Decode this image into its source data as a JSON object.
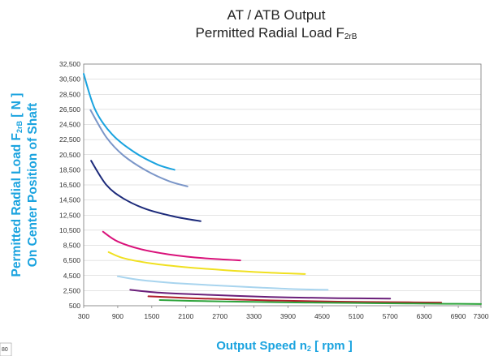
{
  "chart_data": {
    "type": "line",
    "title_line1": "AT / ATB Output",
    "title_line2_main": "Permitted Radial Load F",
    "title_line2_sub": "2rB",
    "xlabel_main": "Output Speed n",
    "xlabel_sub": "2",
    "xlabel_tail": " [ rpm ]",
    "ylabel_line1_main": "Permitted Radial Load F",
    "ylabel_line1_sub": "2rB",
    "ylabel_line1_tail": " [ N ]",
    "ylabel_line2": "On Center Position of Shaft",
    "xlim": [
      300,
      7300
    ],
    "ylim": [
      500,
      32500
    ],
    "x_ticks": [
      300,
      900,
      1500,
      2100,
      2700,
      3300,
      3900,
      4500,
      5100,
      5700,
      6300,
      6900,
      7300
    ],
    "x_tick_labels": [
      "300",
      "900",
      "1500",
      "2100",
      "2700",
      "3300",
      "3900",
      "4500",
      "5100",
      "5700",
      "6300",
      "6900",
      "7300"
    ],
    "y_ticks": [
      500,
      2500,
      4500,
      6500,
      8500,
      10500,
      12500,
      14500,
      16500,
      18500,
      20500,
      22500,
      24500,
      26500,
      28500,
      30500,
      32500
    ],
    "y_tick_labels": [
      "500",
      "2,500",
      "4,500",
      "6,500",
      "8,500",
      "10,500",
      "12,500",
      "14,500",
      "16,500",
      "18,500",
      "20,500",
      "22,500",
      "24,500",
      "26,500",
      "28,500",
      "30,500",
      "32,500"
    ],
    "grid": "horizontal",
    "series": [
      {
        "color": "#1aa3df",
        "points": [
          [
            300,
            31200
          ],
          [
            500,
            26500
          ],
          [
            800,
            23200
          ],
          [
            1200,
            20800
          ],
          [
            1600,
            19200
          ],
          [
            1900,
            18500
          ]
        ]
      },
      {
        "color": "#7b96c8",
        "points": [
          [
            420,
            26400
          ],
          [
            700,
            22800
          ],
          [
            1000,
            20400
          ],
          [
            1400,
            18400
          ],
          [
            1800,
            17000
          ],
          [
            2130,
            16300
          ]
        ]
      },
      {
        "color": "#1c2a7a",
        "points": [
          [
            430,
            19700
          ],
          [
            700,
            16500
          ],
          [
            1000,
            14700
          ],
          [
            1400,
            13300
          ],
          [
            1900,
            12300
          ],
          [
            2360,
            11700
          ]
        ]
      },
      {
        "color": "#d9127a",
        "points": [
          [
            640,
            10300
          ],
          [
            900,
            9000
          ],
          [
            1300,
            8000
          ],
          [
            1800,
            7300
          ],
          [
            2400,
            6800
          ],
          [
            3060,
            6500
          ]
        ]
      },
      {
        "color": "#f0e020",
        "points": [
          [
            740,
            7600
          ],
          [
            1000,
            6800
          ],
          [
            1500,
            6100
          ],
          [
            2100,
            5600
          ],
          [
            2800,
            5200
          ],
          [
            3500,
            4900
          ],
          [
            4200,
            4700
          ]
        ]
      },
      {
        "color": "#a8d4ee",
        "points": [
          [
            900,
            4400
          ],
          [
            1300,
            3900
          ],
          [
            1900,
            3500
          ],
          [
            2600,
            3200
          ],
          [
            3400,
            2900
          ],
          [
            4000,
            2700
          ],
          [
            4600,
            2600
          ]
        ]
      },
      {
        "color": "#6a1f7a",
        "points": [
          [
            1120,
            2600
          ],
          [
            1600,
            2250
          ],
          [
            2300,
            2000
          ],
          [
            3000,
            1800
          ],
          [
            3900,
            1600
          ],
          [
            4800,
            1500
          ],
          [
            5700,
            1450
          ]
        ]
      },
      {
        "color": "#b01e2a",
        "points": [
          [
            1440,
            1750
          ],
          [
            2200,
            1500
          ],
          [
            3000,
            1320
          ],
          [
            3900,
            1150
          ],
          [
            4800,
            1040
          ],
          [
            5700,
            970
          ],
          [
            6600,
            920
          ]
        ]
      },
      {
        "color": "#2ea43c",
        "points": [
          [
            1640,
            1250
          ],
          [
            2400,
            1110
          ],
          [
            3300,
            1000
          ],
          [
            4200,
            920
          ],
          [
            5100,
            860
          ],
          [
            6000,
            800
          ],
          [
            6700,
            760
          ],
          [
            7300,
            730
          ]
        ]
      }
    ]
  },
  "corner_note": "80"
}
